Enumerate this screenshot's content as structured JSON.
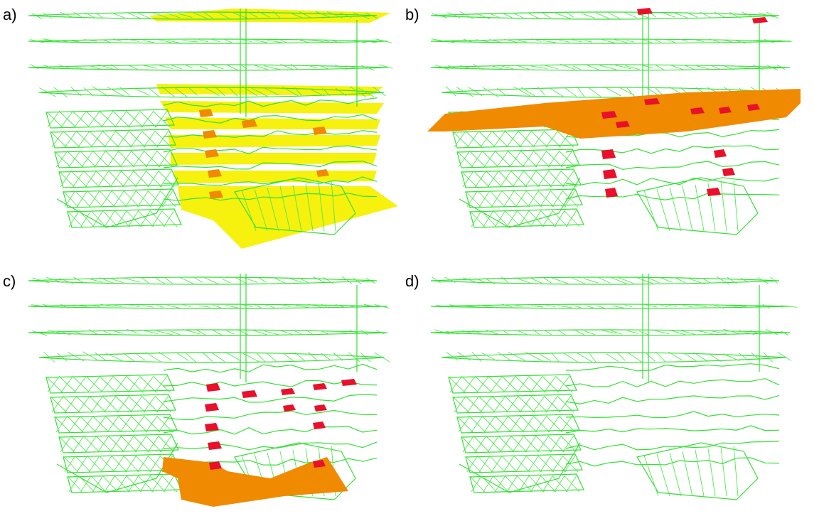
{
  "panels": [
    {
      "label": "a)",
      "id": "a",
      "highlight": "yellow-stack"
    },
    {
      "label": "b)",
      "id": "b",
      "highlight": "orange-level-upper"
    },
    {
      "label": "c)",
      "id": "c",
      "highlight": "orange-level-lower"
    },
    {
      "label": "d)",
      "id": "d",
      "highlight": "none"
    }
  ],
  "colors": {
    "wire": "#33e033",
    "yellow": "#f5f000",
    "orange": "#f08a00",
    "red": "#e8102a"
  }
}
